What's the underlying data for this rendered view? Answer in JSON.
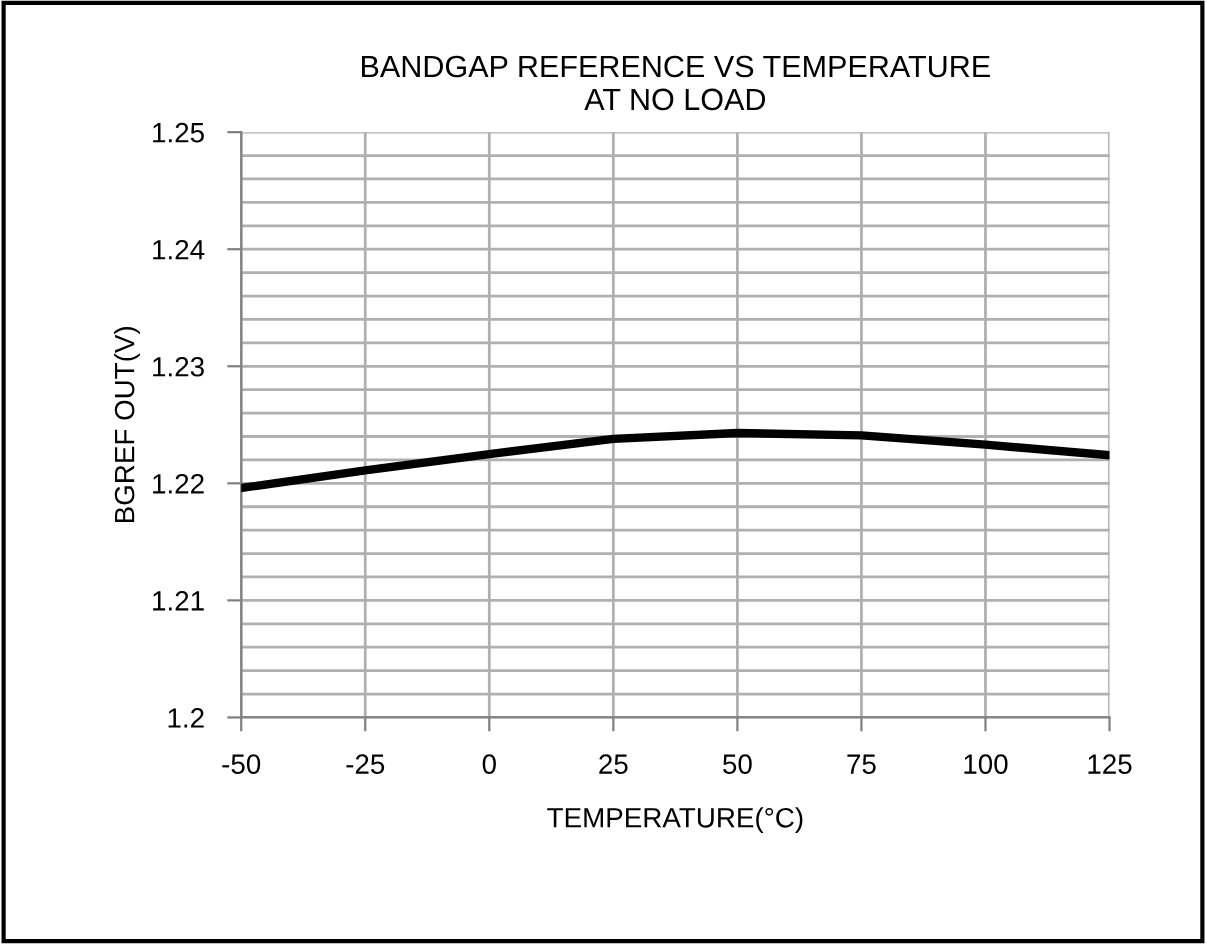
{
  "chart_data": {
    "type": "line",
    "title": "BANDGAP REFERENCE VS TEMPERATURE\nAT NO LOAD",
    "xlabel": "TEMPERATURE(°C)",
    "ylabel": "BGREF OUT(V)",
    "x": [
      -50,
      -25,
      0,
      25,
      50,
      75,
      100,
      125
    ],
    "series": [
      {
        "color": "#000000",
        "values": [
          1.2196,
          1.2211,
          1.2225,
          1.2238,
          1.2243,
          1.2241,
          1.2233,
          1.2224
        ]
      }
    ],
    "xlim": [
      -50,
      125
    ],
    "xticks": [
      -50,
      -25,
      0,
      25,
      50,
      75,
      100,
      125
    ],
    "ylim": [
      1.2,
      1.25
    ],
    "yticks": [
      {
        "value": 1.2,
        "label": "1.2"
      },
      {
        "value": 1.202,
        "label": null
      },
      {
        "value": 1.204,
        "label": null
      },
      {
        "value": 1.206,
        "label": null
      },
      {
        "value": 1.208,
        "label": null
      },
      {
        "value": 1.21,
        "label": "1.21"
      },
      {
        "value": 1.212,
        "label": null
      },
      {
        "value": 1.214,
        "label": null
      },
      {
        "value": 1.216,
        "label": null
      },
      {
        "value": 1.218,
        "label": null
      },
      {
        "value": 1.22,
        "label": "1.22"
      },
      {
        "value": 1.222,
        "label": null
      },
      {
        "value": 1.224,
        "label": null
      },
      {
        "value": 1.226,
        "label": null
      },
      {
        "value": 1.228,
        "label": null
      },
      {
        "value": 1.23,
        "label": "1.23"
      },
      {
        "value": 1.232,
        "label": null
      },
      {
        "value": 1.234,
        "label": null
      },
      {
        "value": 1.236,
        "label": null
      },
      {
        "value": 1.238,
        "label": null
      },
      {
        "value": 1.24,
        "label": "1.24"
      },
      {
        "value": 1.242,
        "label": null
      },
      {
        "value": 1.244,
        "label": null
      },
      {
        "value": 1.246,
        "label": null
      },
      {
        "value": 1.248,
        "label": null
      },
      {
        "value": 1.25,
        "label": "1.25"
      }
    ],
    "grid": true,
    "marker": "none",
    "line_style": "solid"
  }
}
